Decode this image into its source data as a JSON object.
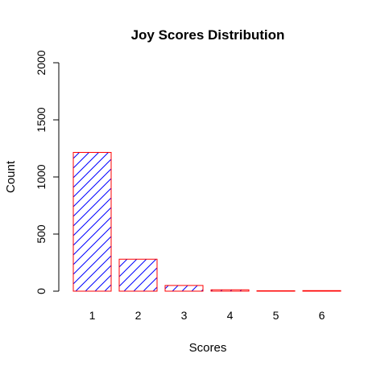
{
  "chart_data": {
    "type": "bar",
    "title": "Joy Scores Distribution",
    "xlabel": "Scores",
    "ylabel": "Count",
    "categories": [
      "1",
      "2",
      "3",
      "4",
      "5",
      "6"
    ],
    "values": [
      1215,
      280,
      50,
      12,
      3,
      5
    ],
    "ylim": [
      0,
      2000
    ],
    "yticks": [
      "0",
      "500",
      "1000",
      "1500",
      "2000"
    ],
    "bar_fill_pattern": "diagonal-hatch",
    "hatch_color": "#0000ff",
    "bar_border_color": "#ff0000",
    "grid": false,
    "legend": "none"
  }
}
